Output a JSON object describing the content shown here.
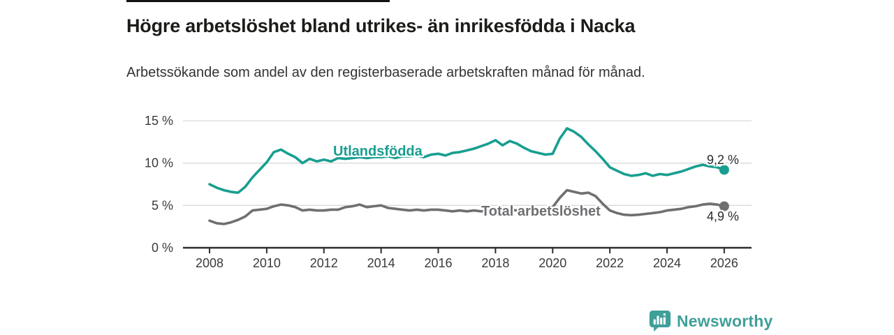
{
  "header": {
    "title": "Högre arbetslöshet bland utrikes- än inrikesfödda i Nacka",
    "subtitle": "Arbetssökande som andel av den registerbaserade arbetskraften månad för månad."
  },
  "chart_data": {
    "type": "line",
    "title": "Högre arbetslöshet bland utrikes- än inrikesfödda i Nacka",
    "subtitle": "Arbetssökande som andel av den registerbaserade arbetskraften månad för månad.",
    "x_axis": {
      "min": 2008,
      "max": 2026,
      "ticks": [
        2008,
        2010,
        2012,
        2014,
        2016,
        2018,
        2020,
        2022,
        2024,
        2026
      ],
      "tick_labels": [
        "2008",
        "2010",
        "2012",
        "2014",
        "2016",
        "2018",
        "2020",
        "2022",
        "2024",
        "2026"
      ]
    },
    "y_axis": {
      "min": 0,
      "max": 15,
      "ticks": [
        0,
        5,
        10,
        15
      ],
      "tick_labels": [
        "0 %",
        "5 %",
        "10 %",
        "15 %"
      ],
      "grid": true
    },
    "legend_position": "inline-labels",
    "series": [
      {
        "name": "Utlandsfödda",
        "color": "#189e90",
        "end_value": 9.2,
        "end_label": "9,2 %",
        "x": [
          2008,
          2008.25,
          2008.5,
          2008.75,
          2009,
          2009.25,
          2009.5,
          2009.75,
          2010,
          2010.25,
          2010.5,
          2010.75,
          2011,
          2011.25,
          2011.5,
          2011.75,
          2012,
          2012.25,
          2012.5,
          2012.75,
          2013,
          2013.25,
          2013.5,
          2013.75,
          2014,
          2014.25,
          2014.5,
          2014.75,
          2015,
          2015.25,
          2015.5,
          2015.75,
          2016,
          2016.25,
          2016.5,
          2016.75,
          2017,
          2017.25,
          2017.5,
          2017.75,
          2018,
          2018.25,
          2018.5,
          2018.75,
          2019,
          2019.25,
          2019.5,
          2019.75,
          2020,
          2020.25,
          2020.5,
          2020.75,
          2021,
          2021.25,
          2021.5,
          2021.75,
          2022,
          2022.25,
          2022.5,
          2022.75,
          2023,
          2023.25,
          2023.5,
          2023.75,
          2024,
          2024.25,
          2024.5,
          2024.75,
          2025,
          2025.25,
          2025.5,
          2025.75,
          2026
        ],
        "values": [
          7.5,
          7.1,
          6.8,
          6.6,
          6.5,
          7.2,
          8.3,
          9.2,
          10.1,
          11.3,
          11.6,
          11.1,
          10.7,
          10.0,
          10.5,
          10.2,
          10.4,
          10.2,
          10.6,
          10.5,
          10.6,
          10.7,
          10.6,
          10.7,
          10.7,
          10.8,
          10.6,
          10.8,
          10.8,
          10.9,
          10.7,
          11.0,
          11.1,
          10.9,
          11.2,
          11.3,
          11.5,
          11.7,
          12.0,
          12.3,
          12.7,
          12.1,
          12.6,
          12.3,
          11.8,
          11.4,
          11.2,
          11.0,
          11.1,
          12.9,
          14.1,
          13.7,
          13.1,
          12.2,
          11.4,
          10.5,
          9.5,
          9.1,
          8.7,
          8.5,
          8.6,
          8.8,
          8.5,
          8.7,
          8.6,
          8.8,
          9.0,
          9.3,
          9.6,
          9.8,
          9.6,
          9.5,
          9.2
        ]
      },
      {
        "name": "Total arbetslöshet",
        "color": "#6f6f72",
        "end_value": 4.9,
        "end_label": "4,9 %",
        "x": [
          2008,
          2008.25,
          2008.5,
          2008.75,
          2009,
          2009.25,
          2009.5,
          2009.75,
          2010,
          2010.25,
          2010.5,
          2010.75,
          2011,
          2011.25,
          2011.5,
          2011.75,
          2012,
          2012.25,
          2012.5,
          2012.75,
          2013,
          2013.25,
          2013.5,
          2013.75,
          2014,
          2014.25,
          2014.5,
          2014.75,
          2015,
          2015.25,
          2015.5,
          2015.75,
          2016,
          2016.25,
          2016.5,
          2016.75,
          2017,
          2017.25,
          2017.5,
          2017.75,
          2018,
          2018.25,
          2018.5,
          2018.75,
          2019,
          2019.25,
          2019.5,
          2019.75,
          2020,
          2020.25,
          2020.5,
          2020.75,
          2021,
          2021.25,
          2021.5,
          2021.75,
          2022,
          2022.25,
          2022.5,
          2022.75,
          2023,
          2023.25,
          2023.5,
          2023.75,
          2024,
          2024.25,
          2024.5,
          2024.75,
          2025,
          2025.25,
          2025.5,
          2025.75,
          2026
        ],
        "values": [
          3.2,
          2.9,
          2.8,
          3.0,
          3.3,
          3.7,
          4.4,
          4.5,
          4.6,
          4.9,
          5.1,
          5.0,
          4.8,
          4.4,
          4.5,
          4.4,
          4.4,
          4.5,
          4.5,
          4.8,
          4.9,
          5.1,
          4.8,
          4.9,
          5.0,
          4.7,
          4.6,
          4.5,
          4.4,
          4.5,
          4.4,
          4.5,
          4.5,
          4.4,
          4.3,
          4.4,
          4.3,
          4.4,
          4.3,
          4.4,
          4.5,
          4.4,
          4.5,
          4.4,
          4.4,
          4.5,
          4.5,
          4.6,
          4.8,
          5.9,
          6.8,
          6.6,
          6.4,
          6.5,
          6.1,
          5.2,
          4.4,
          4.1,
          3.9,
          3.85,
          3.9,
          4.0,
          4.1,
          4.2,
          4.4,
          4.5,
          4.6,
          4.8,
          4.9,
          5.1,
          5.2,
          5.1,
          4.9
        ]
      }
    ]
  },
  "footer": {
    "brand": "Newsworthy",
    "logo_icon": "bar-chart-speech-bubble"
  },
  "colors": {
    "accent_teal": "#189e90",
    "series_gray": "#6f6f72",
    "brand_teal": "#3f9f99",
    "grid": "#d9d9d9",
    "axis": "#2d2d2d",
    "title_text": "#1c1c1a",
    "body_text": "#333333"
  }
}
